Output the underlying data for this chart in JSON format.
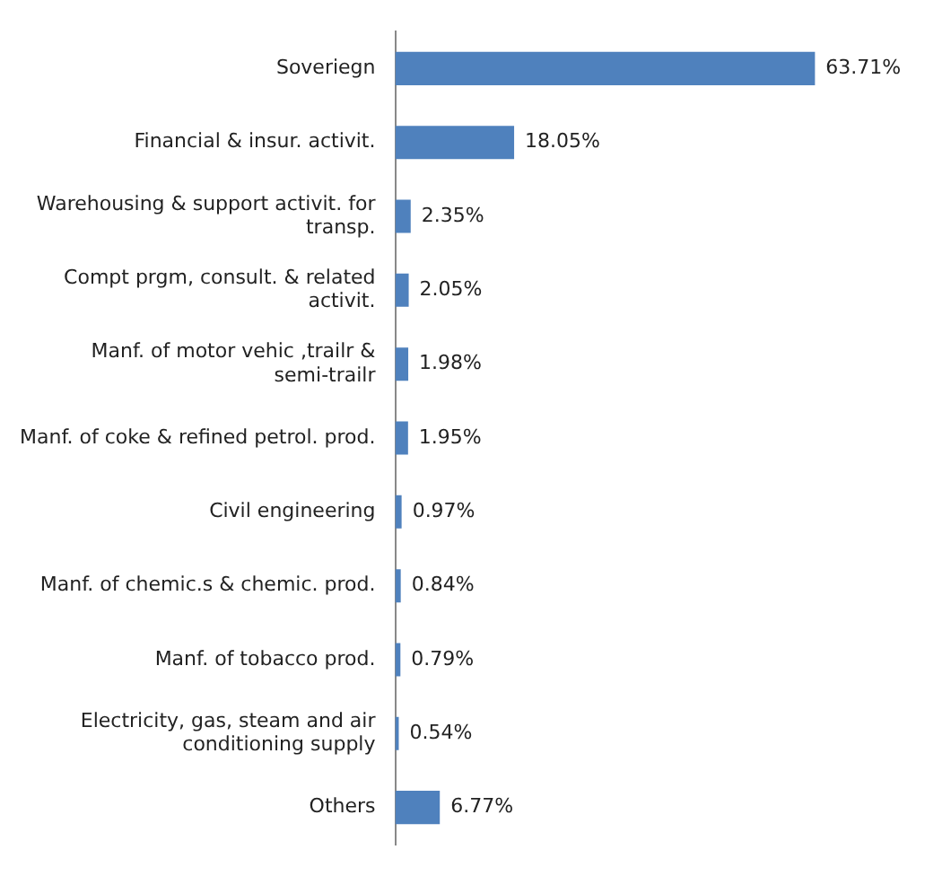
{
  "chart_data": {
    "type": "bar",
    "orientation": "horizontal",
    "categories": [
      "Soveriegn",
      "Financial & insur. activit.",
      "Warehousing & support activit. for transp.",
      "Compt prgm, consult. & related activit.",
      "Manf. of motor vehic ,trailr & semi-trailr",
      "Manf. of coke & refined petrol. prod.",
      "Civil engineering",
      "Manf. of chemic.s & chemic. prod.",
      "Manf. of tobacco prod.",
      "Electricity, gas, steam and air conditioning supply",
      "Others"
    ],
    "values": [
      63.71,
      18.05,
      2.35,
      2.05,
      1.98,
      1.95,
      0.97,
      0.84,
      0.79,
      0.54,
      6.77
    ],
    "value_labels": [
      "63.71%",
      "18.05%",
      "2.35%",
      "2.05%",
      "1.98%",
      "1.95%",
      "0.97%",
      "0.84%",
      "0.79%",
      "0.54%",
      "6.77%"
    ],
    "color": "#4f81bd",
    "grid": false,
    "legend": false
  }
}
